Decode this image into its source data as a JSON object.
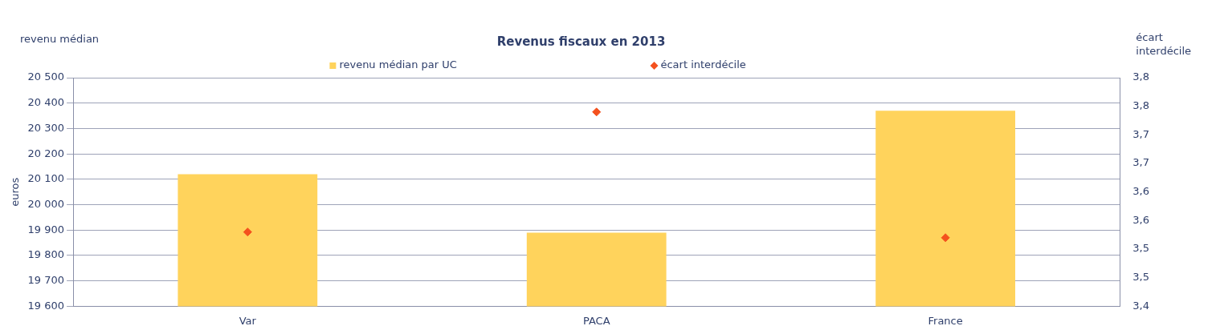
{
  "chart_data": {
    "type": "bar",
    "title": "Revenus fiscaux en 2013",
    "ylabel": "euros",
    "y2label": "écart interdécile",
    "annotations": [
      "revenu médian"
    ],
    "categories": [
      "Var",
      "PACA",
      "France"
    ],
    "series": [
      {
        "name": "revenu médian par UC",
        "color": "#ffd35c",
        "values": [
          20120,
          19890,
          20370
        ]
      },
      {
        "name": "écart interdécile",
        "type": "scatter",
        "axis": "y2",
        "color": "#f4511e",
        "values": [
          3.53,
          3.74,
          3.52
        ]
      }
    ],
    "ylim": [
      19600,
      20500
    ],
    "yticks": [
      {
        "value": 19600,
        "label": "19 600"
      },
      {
        "value": 19700,
        "label": "19 700"
      },
      {
        "value": 19800,
        "label": "19 800"
      },
      {
        "value": 19900,
        "label": "19 900"
      },
      {
        "value": 20000,
        "label": "20 000"
      },
      {
        "value": 20100,
        "label": "20 100"
      },
      {
        "value": 20200,
        "label": "20 200"
      },
      {
        "value": 20300,
        "label": "20 300"
      },
      {
        "value": 20400,
        "label": "20 400"
      },
      {
        "value": 20500,
        "label": "20 500"
      }
    ],
    "y2lim": [
      3.4,
      3.8
    ],
    "y2ticks": [
      {
        "value": 3.4,
        "label": "3,4"
      },
      {
        "value": 3.45,
        "label": "3,5"
      },
      {
        "value": 3.5,
        "label": "3,5"
      },
      {
        "value": 3.55,
        "label": "3,6"
      },
      {
        "value": 3.6,
        "label": "3,6"
      },
      {
        "value": 3.65,
        "label": "3,7"
      },
      {
        "value": 3.7,
        "label": "3,7"
      },
      {
        "value": 3.75,
        "label": "3,8"
      },
      {
        "value": 3.8,
        "label": "3,8"
      }
    ],
    "grid": "y",
    "legend": "top",
    "marker": "diamond"
  }
}
